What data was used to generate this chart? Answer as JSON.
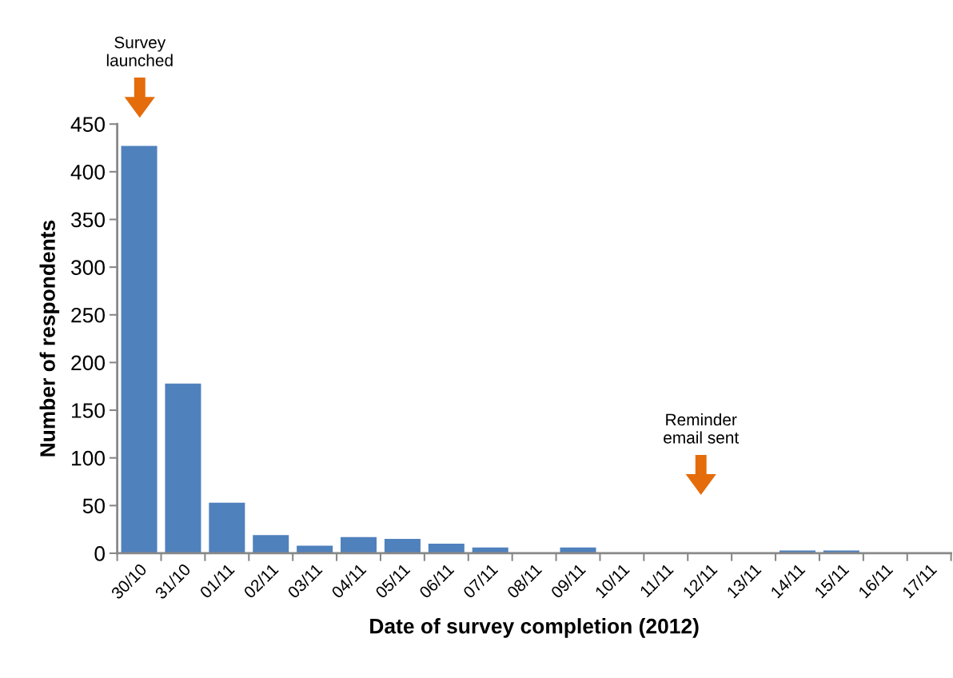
{
  "chart_data": {
    "type": "bar",
    "xlabel": "Date of survey completion (2012)",
    "ylabel": "Number of respondents",
    "categories": [
      "30/10",
      "31/10",
      "01/11",
      "02/11",
      "03/11",
      "04/11",
      "05/11",
      "06/11",
      "07/11",
      "08/11",
      "09/11",
      "10/11",
      "11/11",
      "12/11",
      "13/11",
      "14/11",
      "15/11",
      "16/11",
      "17/11"
    ],
    "values": [
      427,
      178,
      53,
      19,
      8,
      17,
      15,
      10,
      6,
      0,
      6,
      0,
      0,
      0,
      0,
      3,
      3,
      0,
      0
    ],
    "color": "#4f81bd",
    "ylim": [
      0,
      450
    ],
    "yticks": [
      0,
      50,
      100,
      150,
      200,
      250,
      300,
      350,
      400,
      450
    ],
    "grid": false,
    "annotations": [
      "Survey\nlaunched",
      "Reminder\nemail sent"
    ]
  }
}
